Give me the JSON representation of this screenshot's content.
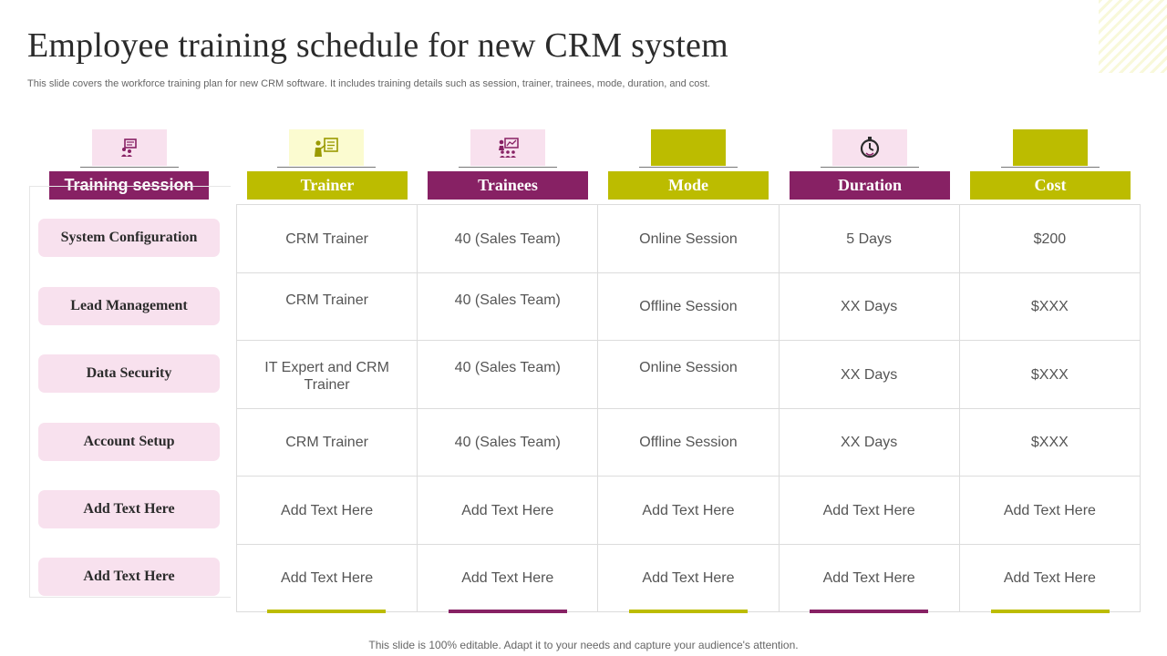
{
  "title": "Employee training schedule for new CRM system",
  "subtitle": "This slide covers the workforce training plan for new CRM software. It includes training details such as session, trainer, trainees, mode, duration, and cost.",
  "colors": {
    "plum": "#872164",
    "olive": "#bcbc00",
    "pink_light": "#f8e1ee",
    "yellow_light": "#fbfbd0"
  },
  "columns": [
    {
      "label": "Training session",
      "icon": "presentation-board-icon"
    },
    {
      "label": "Trainer",
      "icon": "trainer-checklist-icon"
    },
    {
      "label": "Trainees",
      "icon": "audience-chart-icon"
    },
    {
      "label": "Mode",
      "icon": ""
    },
    {
      "label": "Duration",
      "icon": "stopwatch-icon"
    },
    {
      "label": "Cost",
      "icon": ""
    }
  ],
  "sessions": [
    "System Configuration",
    "Lead Management",
    "Data Security",
    "Account Setup",
    "Add Text Here",
    "Add Text Here"
  ],
  "rows": [
    [
      "CRM Trainer",
      "40 (Sales Team)",
      "Online Session",
      "5 Days",
      "$200"
    ],
    [
      "CRM Trainer",
      "40 (Sales Team)",
      "Offline Session",
      "XX Days",
      "$XXX"
    ],
    [
      "IT Expert and CRM Trainer",
      "40 (Sales Team)",
      "Online Session",
      "XX Days",
      "$XXX"
    ],
    [
      "CRM Trainer",
      "40 (Sales Team)",
      "Offline Session",
      "XX Days",
      "$XXX"
    ],
    [
      "Add Text Here",
      "Add Text Here",
      "Add Text Here",
      "Add Text Here",
      "Add Text Here"
    ],
    [
      "Add Text Here",
      "Add Text Here",
      "Add Text Here",
      "Add Text Here",
      "Add Text Here"
    ]
  ],
  "footer": "This slide is 100% editable. Adapt it to your needs and capture your audience's attention."
}
